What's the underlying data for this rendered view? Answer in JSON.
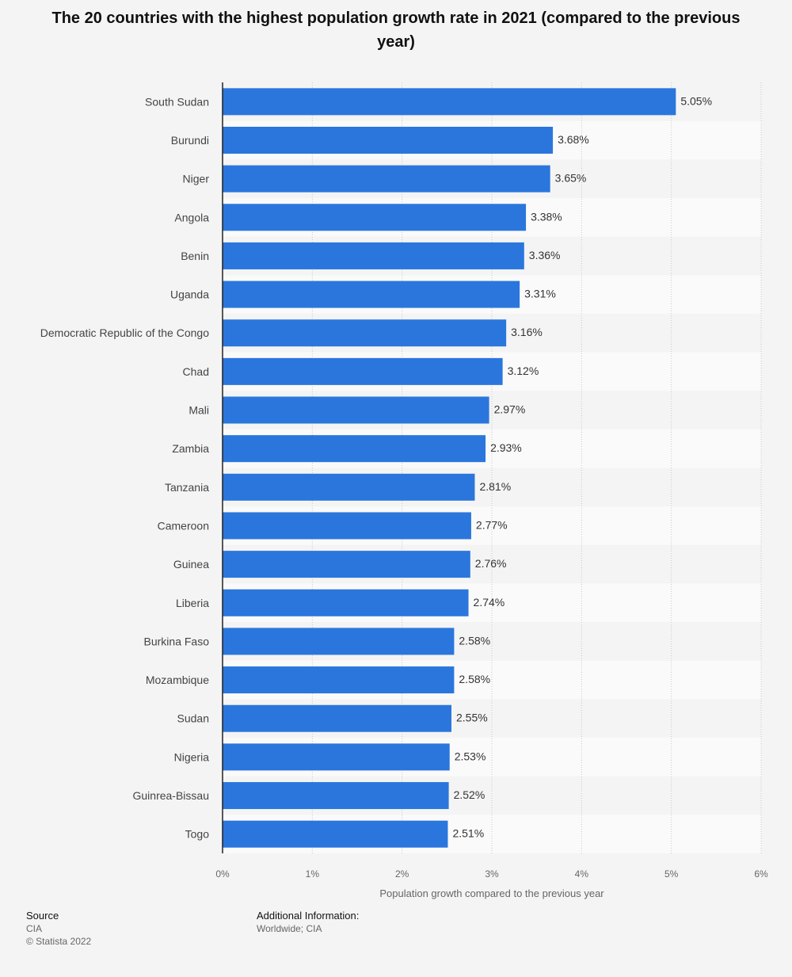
{
  "chart_data": {
    "type": "bar",
    "orientation": "horizontal",
    "title": "The 20 countries with the highest population growth rate in 2021 (compared to the previous year)",
    "xlabel": "Population growth compared to the previous year",
    "ylabel": "",
    "xlim": [
      0,
      6
    ],
    "ticks": [
      0,
      1,
      2,
      3,
      4,
      5,
      6
    ],
    "tick_labels": [
      "0%",
      "1%",
      "2%",
      "3%",
      "4%",
      "5%",
      "6%"
    ],
    "value_suffix": "%",
    "bar_color": "#2a76dd",
    "categories": [
      "South Sudan",
      "Burundi",
      "Niger",
      "Angola",
      "Benin",
      "Uganda",
      "Democratic Republic of the Congo",
      "Chad",
      "Mali",
      "Zambia",
      "Tanzania",
      "Cameroon",
      "Guinea",
      "Liberia",
      "Burkina Faso",
      "Mozambique",
      "Sudan",
      "Nigeria",
      "Guinrea-Bissau",
      "Togo"
    ],
    "values": [
      5.05,
      3.68,
      3.65,
      3.38,
      3.36,
      3.31,
      3.16,
      3.12,
      2.97,
      2.93,
      2.81,
      2.77,
      2.76,
      2.74,
      2.58,
      2.58,
      2.55,
      2.53,
      2.52,
      2.51
    ]
  },
  "footer": {
    "source_label": "Source",
    "source_value": "CIA",
    "copyright": "© Statista 2022",
    "info_label": "Additional Information:",
    "info_value": "Worldwide; CIA"
  }
}
